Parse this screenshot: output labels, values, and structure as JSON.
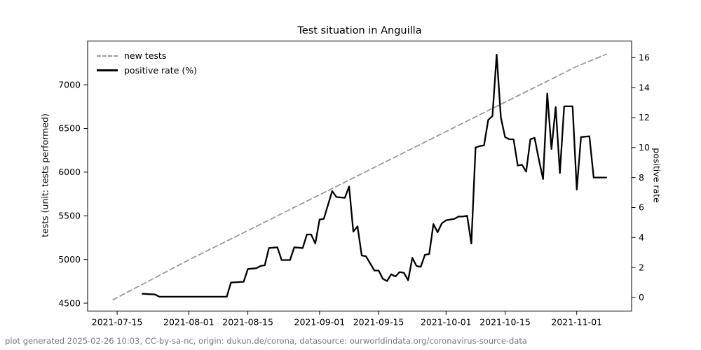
{
  "footer": {
    "text": "plot generated 2025-02-26 10:03, CC-by-sa-nc, origin: dukun.de/corona, datasource: ourworldindata.org/coronavirus-source-data"
  },
  "chart_data": {
    "type": "line",
    "title": "Test situation in Anguilla",
    "legend": {
      "position": "upper left",
      "entries": [
        "new tests",
        "positive rate (%)"
      ]
    },
    "x_axis": {
      "range": [
        "2021-07-08",
        "2021-11-14"
      ],
      "tick_dates": [
        "2021-07-15",
        "2021-08-01",
        "2021-08-15",
        "2021-09-01",
        "2021-09-15",
        "2021-10-01",
        "2021-10-15",
        "2021-11-01"
      ],
      "grid": false
    },
    "y_left": {
      "label": "tests (unit: tests performed)",
      "ticks": [
        4500,
        5000,
        5500,
        6000,
        6500,
        7000
      ],
      "range": [
        4410,
        7500
      ]
    },
    "y_right": {
      "label": "positive rate",
      "ticks": [
        0,
        2,
        4,
        6,
        8,
        10,
        12,
        14,
        16
      ],
      "range": [
        -0.9,
        17.1
      ]
    },
    "series": [
      {
        "name": "new tests",
        "axis": "left",
        "style": "dashed",
        "color": "#999999",
        "width": 1.8,
        "points": [
          [
            "2021-07-14",
            4538
          ],
          [
            "2021-08-01",
            4995
          ],
          [
            "2021-09-01",
            5740
          ],
          [
            "2021-10-01",
            6465
          ],
          [
            "2021-11-01",
            7210
          ],
          [
            "2021-11-08",
            7350
          ]
        ]
      },
      {
        "name": "positive rate (%)",
        "axis": "right",
        "style": "solid",
        "color": "#000000",
        "width": 2.3,
        "points": [
          [
            "2021-07-21",
            0.25
          ],
          [
            "2021-07-24",
            0.2
          ],
          [
            "2021-07-25",
            0.05
          ],
          [
            "2021-08-10",
            0.05
          ],
          [
            "2021-08-11",
            1.0
          ],
          [
            "2021-08-14",
            1.05
          ],
          [
            "2021-08-15",
            1.9
          ],
          [
            "2021-08-17",
            1.95
          ],
          [
            "2021-08-18",
            2.1
          ],
          [
            "2021-08-19",
            2.15
          ],
          [
            "2021-08-20",
            3.3
          ],
          [
            "2021-08-22",
            3.35
          ],
          [
            "2021-08-23",
            2.5
          ],
          [
            "2021-08-25",
            2.5
          ],
          [
            "2021-08-26",
            3.35
          ],
          [
            "2021-08-28",
            3.3
          ],
          [
            "2021-08-29",
            4.2
          ],
          [
            "2021-08-30",
            4.2
          ],
          [
            "2021-08-31",
            3.6
          ],
          [
            "2021-09-01",
            5.2
          ],
          [
            "2021-09-02",
            5.25
          ],
          [
            "2021-09-04",
            7.1
          ],
          [
            "2021-09-05",
            6.7
          ],
          [
            "2021-09-07",
            6.65
          ],
          [
            "2021-09-08",
            7.4
          ],
          [
            "2021-09-09",
            4.4
          ],
          [
            "2021-09-10",
            4.75
          ],
          [
            "2021-09-11",
            2.8
          ],
          [
            "2021-09-12",
            2.75
          ],
          [
            "2021-09-14",
            1.8
          ],
          [
            "2021-09-15",
            1.8
          ],
          [
            "2021-09-16",
            1.25
          ],
          [
            "2021-09-17",
            1.1
          ],
          [
            "2021-09-18",
            1.55
          ],
          [
            "2021-09-19",
            1.4
          ],
          [
            "2021-09-20",
            1.7
          ],
          [
            "2021-09-21",
            1.65
          ],
          [
            "2021-09-22",
            1.15
          ],
          [
            "2021-09-23",
            2.65
          ],
          [
            "2021-09-24",
            2.1
          ],
          [
            "2021-09-25",
            2.05
          ],
          [
            "2021-09-26",
            2.85
          ],
          [
            "2021-09-27",
            2.9
          ],
          [
            "2021-09-28",
            4.9
          ],
          [
            "2021-09-29",
            4.35
          ],
          [
            "2021-09-30",
            4.95
          ],
          [
            "2021-10-01",
            5.15
          ],
          [
            "2021-10-02",
            5.2
          ],
          [
            "2021-10-03",
            5.25
          ],
          [
            "2021-10-04",
            5.4
          ],
          [
            "2021-10-05",
            5.4
          ],
          [
            "2021-10-06",
            5.45
          ],
          [
            "2021-10-07",
            3.6
          ],
          [
            "2021-10-08",
            10.0
          ],
          [
            "2021-10-09",
            10.1
          ],
          [
            "2021-10-10",
            10.15
          ],
          [
            "2021-10-11",
            11.85
          ],
          [
            "2021-10-12",
            12.1
          ],
          [
            "2021-10-13",
            16.2
          ],
          [
            "2021-10-14",
            12.0
          ],
          [
            "2021-10-15",
            10.7
          ],
          [
            "2021-10-16",
            10.55
          ],
          [
            "2021-10-17",
            10.55
          ],
          [
            "2021-10-18",
            8.8
          ],
          [
            "2021-10-19",
            8.85
          ],
          [
            "2021-10-20",
            8.4
          ],
          [
            "2021-10-21",
            10.55
          ],
          [
            "2021-10-22",
            10.65
          ],
          [
            "2021-10-23",
            9.2
          ],
          [
            "2021-10-24",
            7.9
          ],
          [
            "2021-10-25",
            13.6
          ],
          [
            "2021-10-26",
            9.9
          ],
          [
            "2021-10-27",
            12.7
          ],
          [
            "2021-10-28",
            8.3
          ],
          [
            "2021-10-29",
            12.75
          ],
          [
            "2021-10-31",
            12.75
          ],
          [
            "2021-11-01",
            7.2
          ],
          [
            "2021-11-02",
            10.7
          ],
          [
            "2021-11-04",
            10.75
          ],
          [
            "2021-11-05",
            8.0
          ],
          [
            "2021-11-08",
            8.0
          ]
        ]
      }
    ]
  }
}
